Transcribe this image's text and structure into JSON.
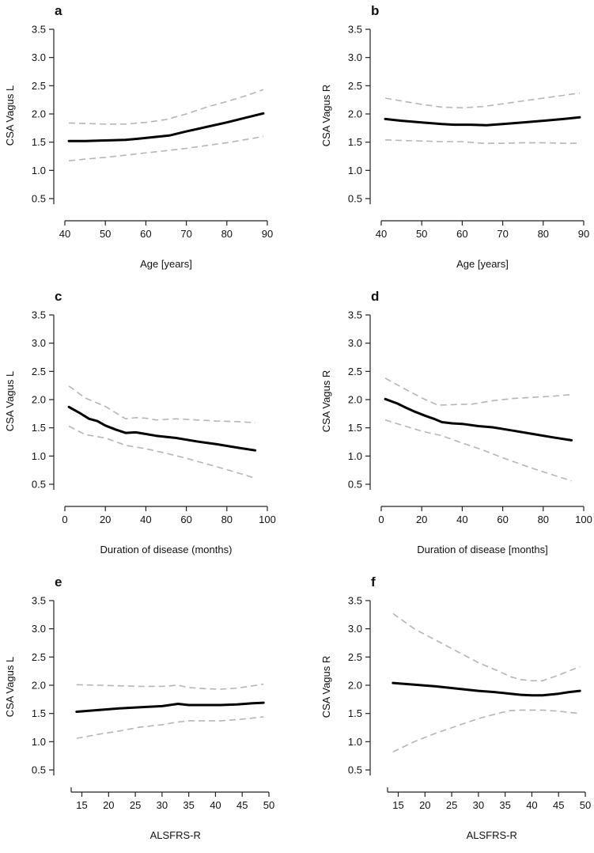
{
  "chart_data": [
    {
      "panel": "a",
      "type": "line",
      "xlabel": "Age [years]",
      "ylabel": "CSA Vagus L",
      "xlim": [
        40,
        90
      ],
      "ylim": [
        0.5,
        3.5
      ],
      "xticks": [
        40,
        50,
        60,
        70,
        80,
        90
      ],
      "yticks": [
        "0.5",
        "1.0",
        "1.5",
        "2.0",
        "2.5",
        "3.0",
        "3.5"
      ],
      "series": [
        {
          "name": "fit",
          "x": [
            41,
            45,
            50,
            55,
            58,
            62,
            66,
            70,
            75,
            80,
            85,
            89
          ],
          "values": [
            1.52,
            1.52,
            1.53,
            1.54,
            1.56,
            1.59,
            1.62,
            1.69,
            1.77,
            1.85,
            1.94,
            2.01
          ]
        },
        {
          "name": "upper",
          "x": [
            41,
            45,
            50,
            55,
            60,
            65,
            70,
            75,
            80,
            85,
            89
          ],
          "values": [
            1.84,
            1.83,
            1.82,
            1.82,
            1.85,
            1.9,
            2.0,
            2.12,
            2.22,
            2.33,
            2.43
          ]
        },
        {
          "name": "lower",
          "x": [
            41,
            45,
            50,
            55,
            60,
            65,
            70,
            75,
            80,
            85,
            89
          ],
          "values": [
            1.17,
            1.2,
            1.23,
            1.27,
            1.31,
            1.35,
            1.39,
            1.44,
            1.49,
            1.55,
            1.6
          ]
        }
      ]
    },
    {
      "panel": "b",
      "type": "line",
      "xlabel": "Age [years]",
      "ylabel": "CSA Vagus R",
      "xlim": [
        40,
        90
      ],
      "ylim": [
        0.5,
        3.5
      ],
      "xticks": [
        40,
        50,
        60,
        70,
        80,
        90
      ],
      "yticks": [
        "0.5",
        "1.0",
        "1.5",
        "2.0",
        "2.5",
        "3.0",
        "3.5"
      ],
      "series": [
        {
          "name": "fit",
          "x": [
            41,
            45,
            50,
            55,
            58,
            62,
            66,
            70,
            75,
            80,
            85,
            89
          ],
          "values": [
            1.91,
            1.88,
            1.85,
            1.82,
            1.81,
            1.81,
            1.8,
            1.82,
            1.85,
            1.88,
            1.91,
            1.94
          ]
        },
        {
          "name": "upper",
          "x": [
            41,
            45,
            50,
            55,
            60,
            65,
            70,
            75,
            80,
            85,
            89
          ],
          "values": [
            2.28,
            2.23,
            2.17,
            2.12,
            2.11,
            2.13,
            2.18,
            2.23,
            2.28,
            2.33,
            2.37
          ]
        },
        {
          "name": "lower",
          "x": [
            41,
            45,
            50,
            55,
            60,
            65,
            70,
            75,
            80,
            85,
            89
          ],
          "values": [
            1.54,
            1.53,
            1.52,
            1.51,
            1.51,
            1.48,
            1.48,
            1.49,
            1.49,
            1.48,
            1.48
          ]
        }
      ]
    },
    {
      "panel": "c",
      "type": "line",
      "xlabel": "Duration of disease (months)",
      "ylabel": "CSA Vagus L",
      "xlim": [
        0,
        100
      ],
      "ylim": [
        0.5,
        3.5
      ],
      "xticks": [
        0,
        20,
        40,
        60,
        80,
        100
      ],
      "yticks": [
        "0.5",
        "1.0",
        "1.5",
        "2.0",
        "2.5",
        "3.0",
        "3.5"
      ],
      "series": [
        {
          "name": "fit",
          "x": [
            2,
            7,
            12,
            16,
            20,
            25,
            30,
            35,
            40,
            45,
            55,
            65,
            75,
            85,
            94
          ],
          "values": [
            1.87,
            1.77,
            1.66,
            1.62,
            1.54,
            1.47,
            1.41,
            1.42,
            1.39,
            1.36,
            1.32,
            1.26,
            1.21,
            1.15,
            1.1
          ]
        },
        {
          "name": "upper",
          "x": [
            2,
            10,
            20,
            30,
            35,
            40,
            45,
            55,
            65,
            75,
            85,
            94
          ],
          "values": [
            2.24,
            2.03,
            1.88,
            1.66,
            1.68,
            1.67,
            1.64,
            1.66,
            1.64,
            1.62,
            1.61,
            1.59
          ]
        },
        {
          "name": "lower",
          "x": [
            2,
            10,
            20,
            30,
            40,
            50,
            60,
            70,
            80,
            94
          ],
          "values": [
            1.53,
            1.38,
            1.32,
            1.19,
            1.13,
            1.05,
            0.96,
            0.86,
            0.76,
            0.61
          ]
        }
      ]
    },
    {
      "panel": "d",
      "type": "line",
      "xlabel": "Duration of disease [months]",
      "ylabel": "CSA Vagus R",
      "xlim": [
        0,
        100
      ],
      "ylim": [
        0.5,
        3.5
      ],
      "xticks": [
        0,
        20,
        40,
        60,
        80,
        100
      ],
      "yticks": [
        "0.5",
        "1.0",
        "1.5",
        "2.0",
        "2.5",
        "3.0",
        "3.5"
      ],
      "series": [
        {
          "name": "fit",
          "x": [
            2,
            8,
            12,
            17,
            22,
            26,
            30,
            35,
            40,
            48,
            55,
            65,
            75,
            85,
            94
          ],
          "values": [
            2.01,
            1.93,
            1.86,
            1.78,
            1.71,
            1.66,
            1.6,
            1.58,
            1.57,
            1.53,
            1.51,
            1.45,
            1.39,
            1.33,
            1.28
          ]
        },
        {
          "name": "upper",
          "x": [
            2,
            10,
            20,
            28,
            35,
            45,
            55,
            65,
            75,
            85,
            94
          ],
          "values": [
            2.38,
            2.22,
            2.03,
            1.9,
            1.91,
            1.92,
            1.98,
            2.02,
            2.04,
            2.06,
            2.09
          ]
        },
        {
          "name": "lower",
          "x": [
            2,
            10,
            20,
            30,
            40,
            50,
            60,
            70,
            80,
            94
          ],
          "values": [
            1.64,
            1.55,
            1.44,
            1.36,
            1.23,
            1.11,
            0.97,
            0.84,
            0.72,
            0.56
          ]
        }
      ]
    },
    {
      "panel": "e",
      "type": "line",
      "xlabel": "ALSFRS-R",
      "ylabel": "CSA Vagus L",
      "xlim": [
        13,
        50
      ],
      "ylim": [
        0.5,
        3.5
      ],
      "xticks": [
        15,
        20,
        25,
        30,
        35,
        40,
        45,
        50
      ],
      "yticks": [
        "0.5",
        "1.0",
        "1.5",
        "2.0",
        "2.5",
        "3.0",
        "3.5"
      ],
      "series": [
        {
          "name": "fit",
          "x": [
            14,
            18,
            22,
            26,
            30,
            33,
            35,
            38,
            41,
            44,
            47,
            49
          ],
          "values": [
            1.53,
            1.56,
            1.59,
            1.61,
            1.63,
            1.67,
            1.65,
            1.65,
            1.65,
            1.66,
            1.68,
            1.69
          ]
        },
        {
          "name": "upper",
          "x": [
            14,
            18,
            22,
            26,
            30,
            33,
            35,
            38,
            41,
            44,
            47,
            49
          ],
          "values": [
            2.01,
            2.0,
            1.99,
            1.98,
            1.98,
            2.0,
            1.96,
            1.94,
            1.93,
            1.95,
            1.99,
            2.02
          ]
        },
        {
          "name": "lower",
          "x": [
            14,
            18,
            22,
            26,
            30,
            33,
            35,
            38,
            41,
            44,
            47,
            49
          ],
          "values": [
            1.06,
            1.13,
            1.19,
            1.26,
            1.3,
            1.35,
            1.37,
            1.37,
            1.37,
            1.39,
            1.42,
            1.44
          ]
        }
      ]
    },
    {
      "panel": "f",
      "type": "line",
      "xlabel": "ALSFRS-R",
      "ylabel": "CSA Vagus R",
      "xlim": [
        13,
        50
      ],
      "ylim": [
        0.5,
        3.5
      ],
      "xticks": [
        15,
        20,
        25,
        30,
        35,
        40,
        45,
        50
      ],
      "yticks": [
        "0.5",
        "1.0",
        "1.5",
        "2.0",
        "2.5",
        "3.0",
        "3.5"
      ],
      "series": [
        {
          "name": "fit",
          "x": [
            14,
            18,
            22,
            26,
            30,
            33,
            36,
            38,
            40,
            42,
            45,
            47,
            49
          ],
          "values": [
            2.04,
            2.01,
            1.98,
            1.94,
            1.9,
            1.88,
            1.85,
            1.83,
            1.82,
            1.82,
            1.85,
            1.88,
            1.9
          ]
        },
        {
          "name": "upper",
          "x": [
            14,
            18,
            22,
            26,
            30,
            34,
            36,
            38,
            40,
            42,
            45,
            49
          ],
          "values": [
            3.27,
            3.0,
            2.8,
            2.6,
            2.4,
            2.24,
            2.15,
            2.1,
            2.08,
            2.08,
            2.18,
            2.33
          ]
        },
        {
          "name": "lower",
          "x": [
            14,
            18,
            22,
            26,
            30,
            34,
            36,
            38,
            42,
            45,
            49
          ],
          "values": [
            0.82,
            1.0,
            1.15,
            1.28,
            1.41,
            1.51,
            1.55,
            1.56,
            1.56,
            1.54,
            1.5
          ]
        }
      ]
    }
  ]
}
